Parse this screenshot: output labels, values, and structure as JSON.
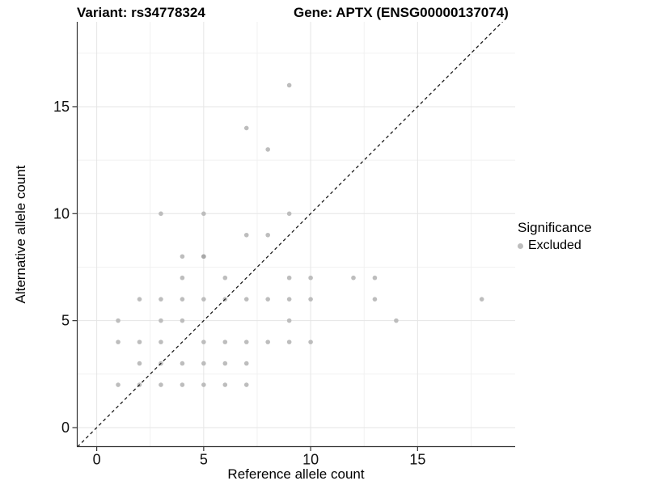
{
  "figure": {
    "variant_title": "Variant: rs34778324",
    "gene_title": "Gene: APTX (ENSG00000137074)",
    "background_color": "#ffffff"
  },
  "legend": {
    "title": "Significance",
    "items": [
      {
        "label": "Excluded",
        "color": "#bdbdbd"
      }
    ]
  },
  "chart_data": {
    "type": "scatter",
    "title_left": "Variant: rs34778324",
    "title_right": "Gene: APTX (ENSG00000137074)",
    "xlabel": "Reference allele count",
    "ylabel": "Alternative allele count",
    "xlim": [
      -0.9,
      19.6
    ],
    "ylim": [
      -0.9,
      19.0
    ],
    "x_ticks": [
      0,
      5,
      10,
      15
    ],
    "y_ticks": [
      0,
      5,
      10,
      15
    ],
    "x_minor": [
      2.5,
      7.5,
      12.5,
      17.5
    ],
    "y_minor": [
      2.5,
      7.5,
      12.5,
      17.5
    ],
    "grid": true,
    "legend_position": "right",
    "identity_line": {
      "equation": "y = x",
      "style": "dashed",
      "color": "#1c1c1c"
    },
    "point_color": "#bdbdbd",
    "grid_major_color": "#e5e5e5",
    "grid_minor_color": "#f0f0f0",
    "axis_color": "#333333",
    "series": [
      {
        "name": "Excluded",
        "points": [
          [
            9,
            16
          ],
          [
            7,
            14
          ],
          [
            8,
            13
          ],
          [
            3,
            10
          ],
          [
            5,
            10
          ],
          [
            9,
            10
          ],
          [
            7,
            9
          ],
          [
            8,
            9
          ],
          [
            4,
            8
          ],
          [
            5,
            8
          ],
          [
            4,
            7
          ],
          [
            6,
            7
          ],
          [
            9,
            7
          ],
          [
            10,
            7
          ],
          [
            12,
            7
          ],
          [
            13,
            7
          ],
          [
            2,
            6
          ],
          [
            3,
            6
          ],
          [
            4,
            6
          ],
          [
            5,
            6
          ],
          [
            6,
            6
          ],
          [
            7,
            6
          ],
          [
            8,
            6
          ],
          [
            9,
            6
          ],
          [
            10,
            6
          ],
          [
            13,
            6
          ],
          [
            18,
            6
          ],
          [
            1,
            5
          ],
          [
            3,
            5
          ],
          [
            4,
            5
          ],
          [
            9,
            5
          ],
          [
            14,
            5
          ],
          [
            1,
            4
          ],
          [
            2,
            4
          ],
          [
            3,
            4
          ],
          [
            5,
            4
          ],
          [
            6,
            4
          ],
          [
            7,
            4
          ],
          [
            8,
            4
          ],
          [
            9,
            4
          ],
          [
            10,
            4
          ],
          [
            2,
            3
          ],
          [
            3,
            3
          ],
          [
            4,
            3
          ],
          [
            5,
            3
          ],
          [
            6,
            3
          ],
          [
            7,
            3
          ],
          [
            1,
            2
          ],
          [
            2,
            2
          ],
          [
            3,
            2
          ],
          [
            4,
            2
          ],
          [
            5,
            2
          ],
          [
            6,
            2
          ],
          [
            7,
            2
          ]
        ]
      }
    ],
    "overplotted_points": [
      [
        5,
        8
      ]
    ]
  }
}
